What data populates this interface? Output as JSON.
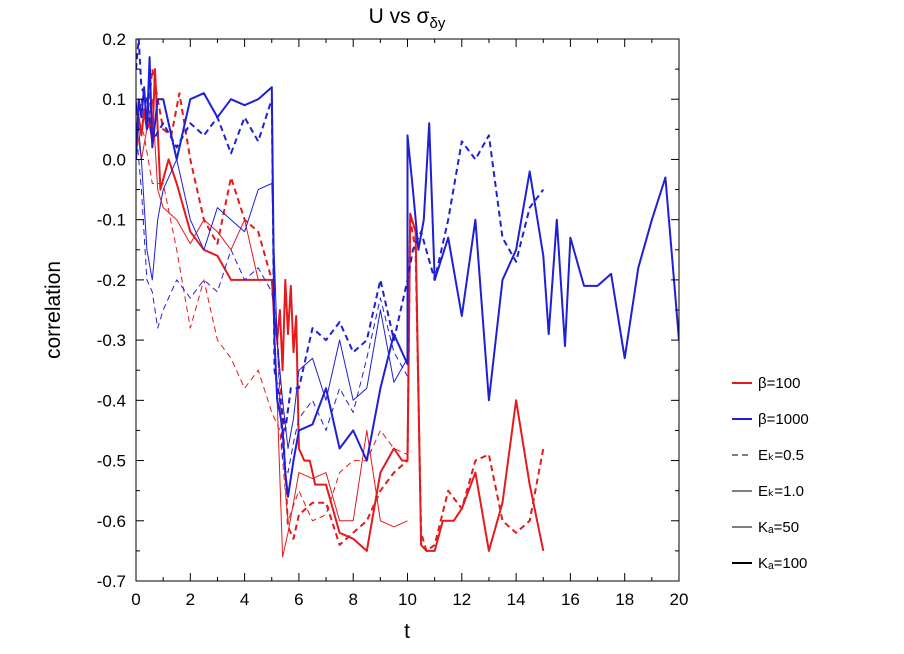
{
  "chart_data": {
    "type": "line",
    "title": "U vs σ",
    "title_subscript": "δy",
    "xlabel": "t",
    "ylabel": "correlation",
    "xlim": [
      0,
      20
    ],
    "ylim": [
      -0.7,
      0.2
    ],
    "xticks": [
      "0",
      "2",
      "4",
      "6",
      "8",
      "10",
      "12",
      "14",
      "16",
      "18",
      "20"
    ],
    "yticks": [
      "0.2",
      "0.1",
      "0.0",
      "-0.1",
      "-0.2",
      "-0.3",
      "-0.4",
      "-0.5",
      "-0.6",
      "-0.7"
    ],
    "grid": false,
    "legend_position": "right",
    "legend": [
      {
        "label": "β=100",
        "color": "#e41a1c",
        "style": "solid",
        "width": "thick"
      },
      {
        "label": "β=1000",
        "color": "#1f1fd6",
        "style": "solid",
        "width": "thick"
      },
      {
        "label": "Eₖ=0.5",
        "color": "#000000",
        "style": "dashed",
        "width": "thin"
      },
      {
        "label": "Eₖ=1.0",
        "color": "#000000",
        "style": "solid",
        "width": "thin"
      },
      {
        "label": "Kₐ=50",
        "color": "#000000",
        "style": "solid",
        "width": "thin"
      },
      {
        "label": "Kₐ=100",
        "color": "#000000",
        "style": "solid",
        "width": "thick"
      }
    ],
    "series": [
      {
        "color": "#e41a1c",
        "style": "solid",
        "width": "thick",
        "points": [
          [
            0.0,
            0.04
          ],
          [
            0.1,
            0.07
          ],
          [
            0.2,
            0.04
          ],
          [
            0.3,
            0.08
          ],
          [
            0.4,
            0.05
          ],
          [
            0.5,
            0.06
          ],
          [
            0.6,
            0.03
          ],
          [
            0.7,
            0.15
          ],
          [
            0.9,
            -0.05
          ],
          [
            1.2,
            0.0
          ],
          [
            1.5,
            -0.04
          ],
          [
            2.0,
            -0.12
          ],
          [
            2.5,
            -0.15
          ],
          [
            3.0,
            -0.16
          ],
          [
            3.5,
            -0.2
          ],
          [
            4.0,
            -0.2
          ],
          [
            4.5,
            -0.2
          ],
          [
            5.0,
            -0.2
          ],
          [
            5.1,
            -0.26
          ],
          [
            5.2,
            -0.3
          ],
          [
            5.3,
            -0.25
          ],
          [
            5.4,
            -0.35
          ],
          [
            5.5,
            -0.2
          ],
          [
            5.6,
            -0.29
          ],
          [
            5.7,
            -0.21
          ],
          [
            5.8,
            -0.32
          ],
          [
            5.9,
            -0.26
          ],
          [
            6.0,
            -0.48
          ],
          [
            6.2,
            -0.5
          ],
          [
            6.4,
            -0.5
          ],
          [
            6.6,
            -0.54
          ],
          [
            7.0,
            -0.54
          ],
          [
            7.5,
            -0.62
          ],
          [
            8.0,
            -0.63
          ],
          [
            8.5,
            -0.65
          ],
          [
            9.0,
            -0.52
          ],
          [
            9.5,
            -0.48
          ],
          [
            9.8,
            -0.5
          ],
          [
            10.0,
            -0.5
          ],
          [
            10.1,
            -0.09
          ],
          [
            10.3,
            -0.12
          ],
          [
            10.5,
            -0.64
          ],
          [
            10.7,
            -0.65
          ],
          [
            11.0,
            -0.65
          ],
          [
            11.3,
            -0.6
          ],
          [
            11.7,
            -0.6
          ],
          [
            12.0,
            -0.58
          ],
          [
            12.5,
            -0.52
          ],
          [
            13.0,
            -0.65
          ],
          [
            13.5,
            -0.57
          ],
          [
            14.0,
            -0.4
          ],
          [
            14.5,
            -0.54
          ],
          [
            15.0,
            -0.65
          ]
        ]
      },
      {
        "color": "#e41a1c",
        "style": "dashed",
        "width": "thick",
        "points": [
          [
            0.0,
            0.05
          ],
          [
            0.2,
            0.1
          ],
          [
            0.4,
            0.06
          ],
          [
            0.6,
            0.15
          ],
          [
            0.8,
            0.1
          ],
          [
            1.0,
            0.05
          ],
          [
            1.3,
            0.04
          ],
          [
            1.6,
            0.11
          ],
          [
            2.0,
            0.0
          ],
          [
            2.5,
            -0.1
          ],
          [
            3.0,
            -0.14
          ],
          [
            3.5,
            -0.03
          ],
          [
            4.0,
            -0.1
          ],
          [
            4.5,
            -0.12
          ],
          [
            5.0,
            -0.2
          ],
          [
            5.2,
            -0.3
          ],
          [
            5.4,
            -0.43
          ],
          [
            5.6,
            -0.61
          ],
          [
            5.8,
            -0.63
          ],
          [
            6.0,
            -0.59
          ],
          [
            6.5,
            -0.57
          ],
          [
            7.0,
            -0.57
          ],
          [
            7.5,
            -0.64
          ],
          [
            8.0,
            -0.62
          ],
          [
            8.5,
            -0.6
          ],
          [
            9.0,
            -0.55
          ],
          [
            9.5,
            -0.52
          ],
          [
            10.0,
            -0.5
          ],
          [
            10.1,
            -0.1
          ],
          [
            10.3,
            -0.15
          ],
          [
            10.5,
            -0.62
          ],
          [
            10.7,
            -0.65
          ],
          [
            11.0,
            -0.64
          ],
          [
            11.5,
            -0.55
          ],
          [
            12.0,
            -0.58
          ],
          [
            12.5,
            -0.5
          ],
          [
            13.0,
            -0.49
          ],
          [
            13.5,
            -0.6
          ],
          [
            14.0,
            -0.62
          ],
          [
            14.5,
            -0.6
          ],
          [
            15.0,
            -0.48
          ]
        ]
      },
      {
        "color": "#e41a1c",
        "style": "solid",
        "width": "thin",
        "points": [
          [
            0.0,
            0.06
          ],
          [
            0.2,
            0.0
          ],
          [
            0.4,
            0.05
          ],
          [
            0.6,
            0.1
          ],
          [
            0.8,
            -0.05
          ],
          [
            1.0,
            -0.08
          ],
          [
            1.5,
            -0.1
          ],
          [
            2.0,
            -0.14
          ],
          [
            2.5,
            -0.1
          ],
          [
            3.0,
            -0.12
          ],
          [
            3.5,
            -0.15
          ],
          [
            4.0,
            -0.1
          ],
          [
            4.5,
            -0.2
          ],
          [
            5.0,
            -0.2
          ],
          [
            5.2,
            -0.4
          ],
          [
            5.4,
            -0.66
          ],
          [
            5.6,
            -0.62
          ],
          [
            6.0,
            -0.52
          ],
          [
            6.5,
            -0.53
          ],
          [
            7.0,
            -0.52
          ],
          [
            7.5,
            -0.6
          ],
          [
            8.0,
            -0.6
          ],
          [
            8.5,
            -0.45
          ],
          [
            9.0,
            -0.6
          ],
          [
            9.5,
            -0.61
          ],
          [
            10.0,
            -0.6
          ]
        ]
      },
      {
        "color": "#e41a1c",
        "style": "dashed",
        "width": "thin",
        "points": [
          [
            0.0,
            0.08
          ],
          [
            0.3,
            0.04
          ],
          [
            0.6,
            -0.04
          ],
          [
            1.0,
            -0.04
          ],
          [
            1.5,
            -0.15
          ],
          [
            2.0,
            -0.28
          ],
          [
            2.5,
            -0.2
          ],
          [
            3.0,
            -0.3
          ],
          [
            3.5,
            -0.33
          ],
          [
            4.0,
            -0.38
          ],
          [
            4.5,
            -0.35
          ],
          [
            5.0,
            -0.42
          ],
          [
            5.3,
            -0.45
          ],
          [
            5.6,
            -0.6
          ],
          [
            6.0,
            -0.55
          ],
          [
            6.5,
            -0.6
          ],
          [
            7.0,
            -0.59
          ],
          [
            7.5,
            -0.52
          ],
          [
            8.0,
            -0.5
          ],
          [
            8.5,
            -0.5
          ],
          [
            9.0,
            -0.45
          ],
          [
            9.5,
            -0.48
          ],
          [
            10.0,
            -0.49
          ]
        ]
      },
      {
        "color": "#1f1fd6",
        "style": "solid",
        "width": "thick",
        "points": [
          [
            0.0,
            0.0
          ],
          [
            0.1,
            0.1
          ],
          [
            0.2,
            0.07
          ],
          [
            0.3,
            0.12
          ],
          [
            0.4,
            0.05
          ],
          [
            0.5,
            0.17
          ],
          [
            0.6,
            0.02
          ],
          [
            0.8,
            0.1
          ],
          [
            1.0,
            0.1
          ],
          [
            1.5,
            0.0
          ],
          [
            2.0,
            0.1
          ],
          [
            2.5,
            0.11
          ],
          [
            3.0,
            0.07
          ],
          [
            3.5,
            0.1
          ],
          [
            4.0,
            0.09
          ],
          [
            4.5,
            0.1
          ],
          [
            5.0,
            0.12
          ],
          [
            5.1,
            -0.3
          ],
          [
            5.2,
            -0.4
          ],
          [
            5.3,
            -0.42
          ],
          [
            5.4,
            -0.45
          ],
          [
            5.5,
            -0.52
          ],
          [
            5.6,
            -0.56
          ],
          [
            5.8,
            -0.5
          ],
          [
            6.0,
            -0.45
          ],
          [
            6.5,
            -0.44
          ],
          [
            7.0,
            -0.38
          ],
          [
            7.5,
            -0.48
          ],
          [
            8.0,
            -0.45
          ],
          [
            8.5,
            -0.5
          ],
          [
            9.0,
            -0.38
          ],
          [
            9.5,
            -0.29
          ],
          [
            10.0,
            -0.34
          ],
          [
            10.0,
            0.04
          ],
          [
            10.2,
            -0.05
          ],
          [
            10.4,
            -0.15
          ],
          [
            10.6,
            -0.1
          ],
          [
            10.8,
            0.06
          ],
          [
            11.0,
            -0.2
          ],
          [
            11.5,
            -0.13
          ],
          [
            12.0,
            -0.26
          ],
          [
            12.5,
            -0.1
          ],
          [
            13.0,
            -0.4
          ],
          [
            13.5,
            -0.2
          ],
          [
            14.0,
            -0.15
          ],
          [
            14.5,
            -0.02
          ],
          [
            15.0,
            -0.16
          ],
          [
            15.2,
            -0.29
          ],
          [
            15.5,
            -0.1
          ],
          [
            15.8,
            -0.31
          ],
          [
            16.0,
            -0.13
          ],
          [
            16.5,
            -0.21
          ],
          [
            17.0,
            -0.21
          ],
          [
            17.5,
            -0.19
          ],
          [
            18.0,
            -0.33
          ],
          [
            18.5,
            -0.18
          ],
          [
            19.0,
            -0.1
          ],
          [
            19.5,
            -0.03
          ],
          [
            20.0,
            -0.3
          ]
        ]
      },
      {
        "color": "#1f1fd6",
        "style": "dashed",
        "width": "thick",
        "points": [
          [
            0.0,
            0.15
          ],
          [
            0.1,
            0.2
          ],
          [
            0.2,
            0.12
          ],
          [
            0.4,
            0.1
          ],
          [
            0.6,
            0.03
          ],
          [
            1.0,
            0.06
          ],
          [
            1.5,
            0.02
          ],
          [
            2.0,
            0.06
          ],
          [
            2.5,
            0.04
          ],
          [
            3.0,
            0.07
          ],
          [
            3.5,
            0.01
          ],
          [
            4.0,
            0.07
          ],
          [
            4.5,
            0.03
          ],
          [
            5.0,
            0.1
          ],
          [
            5.1,
            -0.35
          ],
          [
            5.3,
            -0.4
          ],
          [
            5.5,
            -0.45
          ],
          [
            5.7,
            -0.38
          ],
          [
            6.0,
            -0.38
          ],
          [
            6.5,
            -0.28
          ],
          [
            7.0,
            -0.3
          ],
          [
            7.5,
            -0.27
          ],
          [
            8.0,
            -0.32
          ],
          [
            8.5,
            -0.3
          ],
          [
            9.0,
            -0.2
          ],
          [
            9.5,
            -0.3
          ],
          [
            10.0,
            -0.2
          ],
          [
            10.2,
            -0.15
          ],
          [
            10.5,
            -0.12
          ],
          [
            11.0,
            -0.2
          ],
          [
            11.5,
            -0.1
          ],
          [
            12.0,
            0.03
          ],
          [
            12.5,
            0.0
          ],
          [
            13.0,
            0.04
          ],
          [
            13.5,
            -0.13
          ],
          [
            14.0,
            -0.17
          ],
          [
            14.5,
            -0.08
          ],
          [
            15.0,
            -0.05
          ]
        ]
      },
      {
        "color": "#1f1fd6",
        "style": "solid",
        "width": "thin",
        "points": [
          [
            0.0,
            0.1
          ],
          [
            0.2,
            0.0
          ],
          [
            0.4,
            -0.15
          ],
          [
            0.6,
            -0.2
          ],
          [
            0.8,
            -0.1
          ],
          [
            1.0,
            -0.05
          ],
          [
            1.5,
            0.0
          ],
          [
            2.0,
            -0.1
          ],
          [
            2.5,
            -0.15
          ],
          [
            3.0,
            -0.08
          ],
          [
            3.5,
            -0.1
          ],
          [
            4.0,
            -0.12
          ],
          [
            4.5,
            -0.05
          ],
          [
            5.0,
            -0.04
          ],
          [
            5.2,
            -0.3
          ],
          [
            5.4,
            -0.4
          ],
          [
            5.6,
            -0.48
          ],
          [
            5.8,
            -0.43
          ],
          [
            6.0,
            -0.35
          ],
          [
            6.5,
            -0.33
          ],
          [
            7.0,
            -0.4
          ],
          [
            7.5,
            -0.3
          ],
          [
            8.0,
            -0.4
          ],
          [
            8.5,
            -0.38
          ],
          [
            9.0,
            -0.25
          ],
          [
            9.5,
            -0.37
          ],
          [
            10.0,
            -0.33
          ]
        ]
      },
      {
        "color": "#1f1fd6",
        "style": "dashed",
        "width": "thin",
        "points": [
          [
            0.0,
            0.05
          ],
          [
            0.2,
            -0.05
          ],
          [
            0.4,
            -0.2
          ],
          [
            0.6,
            -0.22
          ],
          [
            0.8,
            -0.28
          ],
          [
            1.0,
            -0.25
          ],
          [
            1.5,
            -0.2
          ],
          [
            2.0,
            -0.23
          ],
          [
            2.5,
            -0.2
          ],
          [
            3.0,
            -0.22
          ],
          [
            3.5,
            -0.15
          ],
          [
            4.0,
            -0.2
          ],
          [
            4.5,
            -0.18
          ],
          [
            5.0,
            -0.22
          ],
          [
            5.2,
            -0.3
          ],
          [
            5.4,
            -0.5
          ],
          [
            5.6,
            -0.52
          ],
          [
            5.8,
            -0.47
          ],
          [
            6.0,
            -0.43
          ],
          [
            6.5,
            -0.4
          ],
          [
            7.0,
            -0.45
          ],
          [
            7.5,
            -0.38
          ],
          [
            8.0,
            -0.42
          ],
          [
            8.5,
            -0.33
          ],
          [
            9.0,
            -0.23
          ],
          [
            9.5,
            -0.32
          ],
          [
            10.0,
            -0.36
          ]
        ]
      }
    ]
  }
}
